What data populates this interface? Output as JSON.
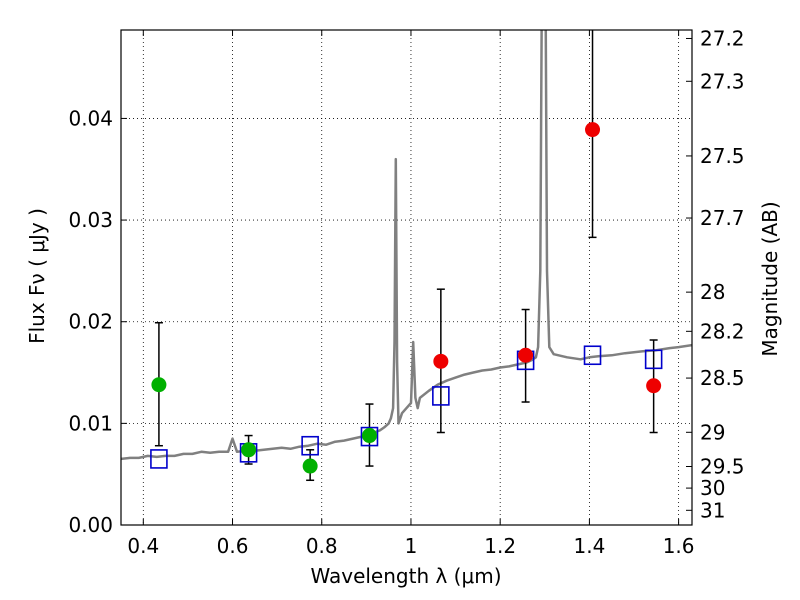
{
  "chart_data": {
    "type": "scatter",
    "xlabel": "Wavelength  λ (μm)",
    "ylabel": "Flux  Fν  ( μJy )",
    "y2label": "Magnitude (AB)",
    "xlim": [
      0.35,
      1.63
    ],
    "ylim": [
      0.0,
      0.0487
    ],
    "grid": true,
    "x_ticks": [
      0.4,
      0.6,
      0.8,
      1.0,
      1.2,
      1.4,
      1.6
    ],
    "x_tick_labels": [
      "0.4",
      "0.6",
      "0.8",
      "1",
      "1.2",
      "1.4",
      "1.6"
    ],
    "y_ticks": [
      0.0,
      0.01,
      0.02,
      0.03,
      0.04
    ],
    "y_tick_labels": [
      "0.00",
      "0.01",
      "0.02",
      "0.03",
      "0.04"
    ],
    "mag_ticks": [
      27.2,
      27.3,
      27.5,
      27.7,
      28,
      28.2,
      28.5,
      29,
      29.5,
      30,
      31
    ],
    "mag_tick_labels": [
      "27.2",
      "27.3",
      "27.5",
      "27.7",
      "28",
      "28.2",
      "28.5",
      "29",
      "29.5",
      "30",
      "31"
    ],
    "colors": {
      "spectrum": "#808080",
      "model": "#0000cc",
      "green": "#00b000",
      "red": "#ee0000",
      "errorbar": "#000000"
    },
    "series": [
      {
        "kind": "spectrum",
        "x": [
          0.35,
          0.37,
          0.39,
          0.41,
          0.43,
          0.45,
          0.47,
          0.49,
          0.51,
          0.53,
          0.55,
          0.57,
          0.59,
          0.6,
          0.61,
          0.63,
          0.65,
          0.67,
          0.69,
          0.71,
          0.73,
          0.75,
          0.77,
          0.79,
          0.81,
          0.83,
          0.85,
          0.87,
          0.89,
          0.91,
          0.93,
          0.94,
          0.95,
          0.955,
          0.96,
          0.963,
          0.966,
          0.969,
          0.972,
          0.976,
          0.98,
          0.99,
          1.0,
          1.005,
          1.01,
          1.015,
          1.02,
          1.04,
          1.06,
          1.08,
          1.1,
          1.12,
          1.14,
          1.16,
          1.18,
          1.2,
          1.22,
          1.24,
          1.26,
          1.27,
          1.28,
          1.285,
          1.29,
          1.293,
          1.296,
          1.299,
          1.302,
          1.305,
          1.31,
          1.32,
          1.35,
          1.38,
          1.4,
          1.42,
          1.45,
          1.48,
          1.5,
          1.52,
          1.55,
          1.58,
          1.6,
          1.63
        ],
        "y": [
          0.0065,
          0.0066,
          0.0066,
          0.0068,
          0.0067,
          0.0068,
          0.0068,
          0.007,
          0.007,
          0.0072,
          0.0071,
          0.0072,
          0.0072,
          0.0085,
          0.0072,
          0.0073,
          0.0073,
          0.0074,
          0.0075,
          0.0076,
          0.0075,
          0.0077,
          0.0078,
          0.008,
          0.0079,
          0.0082,
          0.0083,
          0.0085,
          0.0087,
          0.009,
          0.0093,
          0.0096,
          0.01,
          0.0105,
          0.0115,
          0.018,
          0.036,
          0.016,
          0.01,
          0.0105,
          0.011,
          0.0115,
          0.012,
          0.018,
          0.0125,
          0.0115,
          0.0125,
          0.0132,
          0.0138,
          0.0142,
          0.0145,
          0.0148,
          0.015,
          0.0152,
          0.0153,
          0.0155,
          0.0156,
          0.0158,
          0.016,
          0.0162,
          0.0165,
          0.0175,
          0.025,
          0.05,
          0.05,
          0.05,
          0.05,
          0.025,
          0.0175,
          0.0168,
          0.0165,
          0.0163,
          0.0165,
          0.0166,
          0.0167,
          0.0169,
          0.017,
          0.0171,
          0.0172,
          0.0174,
          0.0175,
          0.0177
        ]
      },
      {
        "kind": "model",
        "x": [
          0.435,
          0.636,
          0.774,
          0.907,
          1.067,
          1.257,
          1.407,
          1.544
        ],
        "y": [
          0.0065,
          0.0071,
          0.0078,
          0.0087,
          0.0127,
          0.0162,
          0.0167,
          0.0163
        ]
      },
      {
        "kind": "green",
        "x": [
          0.435,
          0.636,
          0.774,
          0.907
        ],
        "y": [
          0.0138,
          0.0074,
          0.0058,
          0.0088
        ],
        "err_low": [
          0.0078,
          0.006,
          0.0044,
          0.0058
        ],
        "err_high": [
          0.0199,
          0.0088,
          0.0074,
          0.0119
        ]
      },
      {
        "kind": "red",
        "x": [
          1.067,
          1.257,
          1.407,
          1.544
        ],
        "y": [
          0.0161,
          0.0167,
          0.0389,
          0.0137
        ],
        "err_low": [
          0.0091,
          0.0121,
          0.0283,
          0.0091
        ],
        "err_high": [
          0.0232,
          0.0212,
          0.0495,
          0.0182
        ]
      }
    ]
  }
}
